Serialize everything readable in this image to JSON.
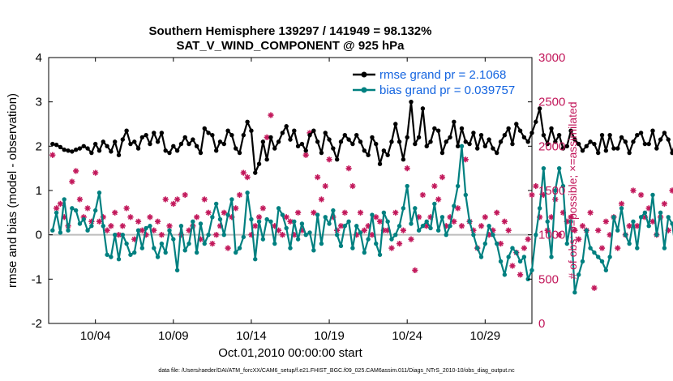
{
  "chart_data": {
    "type": "line",
    "title_line1": "Southern Hemisphere 139297 / 141949 = 98.132%",
    "title_line2": "SAT_V_WIND_COMPONENT @ 925 hPa",
    "ylabel_left": "rmse and bias (model - observation)",
    "ylabel_right": "# of obs: o=possible; ×=assimilated",
    "xlabel": "Oct.01,2010 00:00:00 start",
    "footer": "data file: /Users/raeder/DAI/ATM_forcXX/CAM6_setup/f.e21.FHIST_BGC.f09_025.CAM6assim.011/Diags_NTrS_2010-10/obs_diag_output.nc",
    "ylim_left": [
      -2,
      4
    ],
    "yticks_left": [
      "-2",
      "-1",
      "0",
      "1",
      "2",
      "3",
      "4"
    ],
    "ylim_right": [
      0,
      3000
    ],
    "yticks_right": [
      "0",
      "500",
      "1000",
      "1500",
      "2000",
      "2500",
      "3000"
    ],
    "xlim_days": [
      1.0,
      32.0
    ],
    "xticks": [
      {
        "day": 4,
        "label": "10/04"
      },
      {
        "day": 9,
        "label": "10/09"
      },
      {
        "day": 14,
        "label": "10/14"
      },
      {
        "day": 19,
        "label": "10/19"
      },
      {
        "day": 24,
        "label": "10/24"
      },
      {
        "day": 29,
        "label": "10/29"
      }
    ],
    "zero_line": 0,
    "colors": {
      "rmse": "#000000",
      "bias": "#008080",
      "obs": "#c2185b",
      "legend_text": "#1565e0",
      "zero_line": "#bdbdbd"
    },
    "series": [
      {
        "name": "rmse grand pr = 2.1068",
        "axis": "left",
        "x_start": 1.25,
        "x_step": 0.25,
        "values": [
          2.05,
          2.03,
          1.98,
          1.92,
          1.9,
          1.88,
          1.92,
          1.95,
          2.0,
          1.95,
          1.85,
          2.05,
          1.9,
          2.1,
          2.0,
          1.88,
          2.1,
          1.8,
          2.15,
          2.35,
          2.05,
          2.1,
          1.95,
          2.2,
          2.25,
          2.05,
          2.3,
          2.1,
          2.3,
          1.9,
          1.85,
          2.0,
          1.9,
          2.05,
          2.2,
          2.05,
          2.15,
          2.0,
          1.85,
          2.4,
          2.3,
          2.25,
          1.9,
          2.1,
          2.05,
          2.35,
          2.25,
          1.95,
          1.85,
          2.25,
          2.55,
          2.35,
          1.4,
          1.6,
          2.1,
          1.7,
          2.2,
          1.95,
          2.1,
          2.3,
          2.45,
          2.15,
          2.35,
          2.0,
          2.05,
          1.9,
          2.25,
          2.35,
          2.1,
          1.85,
          2.3,
          2.15,
          1.95,
          1.7,
          2.1,
          2.25,
          2.15,
          2.05,
          2.25,
          2.1,
          1.9,
          1.8,
          2.2,
          2.05,
          1.6,
          1.9,
          1.8,
          2.1,
          2.5,
          2.1,
          1.7,
          2.2,
          3.0,
          2.05,
          2.2,
          2.85,
          2.0,
          2.1,
          2.4,
          2.35,
          1.85,
          2.1,
          2.2,
          2.55,
          2.0,
          2.4,
          2.1,
          2.05,
          2.3,
          1.95,
          2.25,
          2.0,
          2.15,
          1.95,
          1.85,
          2.1,
          2.25,
          2.4,
          2.05,
          2.5,
          2.35,
          2.2,
          2.1,
          2.3,
          2.55,
          2.85,
          2.25,
          2.05,
          2.4,
          2.1,
          2.25,
          1.95,
          2.0,
          2.35,
          2.15,
          2.05,
          1.9,
          2.0,
          2.1,
          2.05,
          1.85,
          2.25,
          1.9,
          2.25,
          1.95,
          1.95,
          2.2,
          2.1,
          1.85,
          2.1,
          2.25,
          2.3,
          2.05,
          2.05,
          2.35,
          1.95,
          2.15,
          2.3,
          2.15,
          1.85,
          2.15,
          2.0,
          2.2,
          1.95,
          2.05,
          1.9,
          1.9,
          1.95,
          2.0,
          1.95,
          1.85,
          2.0,
          2.05,
          1.95,
          1.8,
          1.95,
          2.35,
          2.3,
          2.1,
          2.0,
          2.3,
          2.2,
          2.0,
          2.15,
          2.0,
          2.1,
          2.05,
          2.08,
          2.05,
          2.0
        ]
      },
      {
        "name": "bias grand pr = 0.039757",
        "axis": "left",
        "x_start": 1.25,
        "x_step": 0.25,
        "values": [
          0.1,
          0.5,
          0.05,
          0.8,
          0.1,
          0.6,
          0.55,
          0.25,
          0.35,
          0.1,
          0.2,
          0.55,
          0.95,
          0.2,
          -0.45,
          -0.5,
          0.0,
          -0.55,
          0.0,
          -0.2,
          -0.45,
          -0.4,
          0.1,
          -0.3,
          0.15,
          0.2,
          -0.3,
          -0.5,
          -0.2,
          -0.4,
          0.1,
          -0.1,
          -0.8,
          0.2,
          -0.35,
          -0.2,
          0.3,
          -0.4,
          0.25,
          -0.2,
          0.0,
          0.4,
          0.7,
          0.35,
          0.0,
          0.45,
          0.8,
          -0.4,
          -0.3,
          -0.05,
          0.95,
          0.35,
          -0.55,
          0.3,
          -0.1,
          0.35,
          0.3,
          -0.2,
          0.6,
          0.45,
          0.15,
          -0.3,
          0.3,
          -0.1,
          0.25,
          0.0,
          0.05,
          -0.35,
          0.45,
          -0.2,
          0.4,
          0.25,
          0.55,
          0.0,
          -0.25,
          0.2,
          0.3,
          -0.3,
          0.2,
          0.05,
          -0.4,
          -0.1,
          0.45,
          -0.2,
          -0.45,
          0.5,
          0.3,
          -0.1,
          0.0,
          0.2,
          0.6,
          1.1,
          0.25,
          0.6,
          0.1,
          0.2,
          0.3,
          0.15,
          0.7,
          0.1,
          0.4,
          0.0,
          0.2,
          0.65,
          1.1,
          2.0,
          0.9,
          0.3,
          0.0,
          -0.3,
          -0.5,
          -0.2,
          0.2,
          0.0,
          -0.2,
          -0.6,
          -0.9,
          -0.5,
          -0.3,
          -0.4,
          -0.6,
          -0.5,
          -1.0,
          -0.8,
          0.0,
          0.6,
          1.5,
          0.3,
          -0.5,
          1.0,
          1.5,
          1.1,
          -0.2,
          0.3,
          -1.3,
          -0.9,
          -0.6,
          0.1,
          -0.3,
          -0.4,
          -0.5,
          -0.6,
          -0.8,
          -0.5,
          0.4,
          0.1,
          0.6,
          0.0,
          -0.2,
          0.3,
          -0.3,
          0.4,
          0.5,
          0.2,
          0.9,
          0.0,
          0.5,
          -0.3,
          0.4,
          0.25,
          -0.4,
          -0.5,
          0.4,
          -0.3,
          -0.5,
          0.0,
          0.4,
          -0.1,
          -0.3,
          0.2,
          -0.1,
          0.1,
          -0.4,
          0.5,
          1.5,
          0.8,
          0.4,
          0.0,
          -0.2,
          -0.1,
          0.1,
          0.0,
          0.3,
          -0.2,
          0.5,
          0.3,
          0.2,
          -0.4,
          -0.5,
          -0.6,
          -0.4,
          -0.2,
          0.1,
          -0.3,
          -0.35,
          -0.3,
          0.0,
          0.8,
          -0.25,
          -0.25,
          -0.2
        ]
      }
    ],
    "obs_count_estimates": {
      "x_start": 1.25,
      "x_step": 0.25,
      "assimilated": [
        1900,
        1300,
        1350,
        1200,
        1100,
        1600,
        1720,
        1400,
        1200,
        1300,
        1150,
        1700,
        1150,
        1200,
        1050,
        1100,
        1250,
        1000,
        1100,
        1300,
        1200,
        950,
        1150,
        1050,
        1000,
        1200,
        1050,
        1150,
        1000,
        1400,
        1100,
        1350,
        1400,
        1000,
        1450,
        1050,
        1100,
        1200,
        950,
        1400,
        1250,
        900,
        1000,
        1100,
        1250,
        850,
        1200,
        1300,
        1450,
        1700,
        1650,
        1000,
        1100,
        1200,
        1300,
        2100,
        2350,
        1100,
        1050,
        1000,
        1200,
        1150,
        1000,
        1250,
        1050,
        1900,
        2150,
        1250,
        1650,
        1400,
        1550,
        1850,
        1200,
        1050,
        1100,
        1250,
        1750,
        1550,
        1000,
        1250,
        1050,
        1100,
        1000,
        1200,
        1150,
        1050,
        1050,
        850,
        1250,
        900,
        1050,
        1750,
        950,
        600,
        1200,
        1450,
        1100,
        1200,
        1550,
        1400,
        1650,
        1100,
        1200,
        1150,
        1300,
        1100,
        1850,
        1150,
        1050,
        850,
        1100,
        1200,
        1000,
        1050,
        1250,
        900,
        1150,
        1050,
        650,
        800,
        550,
        850,
        950,
        1450,
        1550,
        1200,
        1450,
        1050,
        1200,
        1400,
        1000,
        1250,
        1150,
        1200,
        1050,
        950,
        1100,
        1050,
        1250,
        400,
        1050,
        850,
        1150,
        1000,
        1200,
        850,
        1350,
        1000,
        1100,
        1500,
        1100,
        1450,
        1200,
        1300,
        1150,
        1000,
        1200,
        1350,
        1050,
        1500,
        1350,
        1100,
        1450,
        1650,
        1500,
        1850,
        1100,
        1000,
        1150,
        1200,
        1300,
        1450,
        1400,
        1200,
        1350,
        1200,
        1100,
        1300,
        2050,
        1050,
        1000,
        1150,
        800,
        1200,
        1200,
        1050,
        1000,
        900,
        250,
        0
      ]
    },
    "legend": {
      "rmse_label": "rmse grand pr = 2.1068",
      "bias_label": "bias grand pr = 0.039757",
      "placement": "top-right"
    }
  }
}
